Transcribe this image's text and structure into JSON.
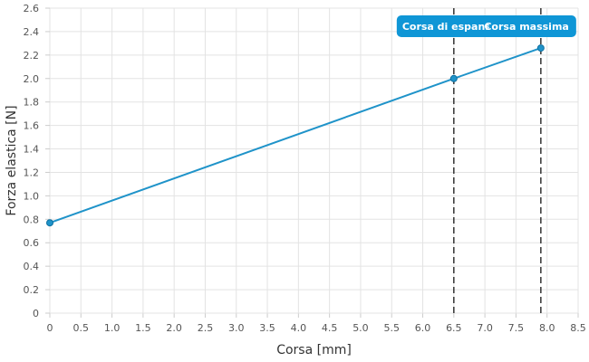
{
  "chart_data": {
    "type": "line",
    "xlabel": "Corsa [mm]",
    "ylabel": "Forza elastica [N]",
    "xlim": [
      0,
      8.5
    ],
    "ylim": [
      0,
      2.6
    ],
    "x_ticks": [
      "0",
      "0.5",
      "1.0",
      "1.5",
      "2.0",
      "2.5",
      "3.0",
      "3.5",
      "4.0",
      "4.5",
      "5.0",
      "5.5",
      "6.0",
      "6.5",
      "7.0",
      "7.5",
      "8.0",
      "8.5"
    ],
    "y_ticks": [
      "0",
      "0.2",
      "0.4",
      "0.6",
      "0.8",
      "1.0",
      "1.2",
      "1.4",
      "1.6",
      "1.8",
      "2.0",
      "2.2",
      "2.4",
      "2.6"
    ],
    "grid": true,
    "series": [
      {
        "color": "#1f93c9",
        "points": [
          {
            "x": 0,
            "y": 0.77
          },
          {
            "x": 6.5,
            "y": 2.0
          },
          {
            "x": 7.9,
            "y": 2.26
          }
        ]
      }
    ],
    "annotations": [
      {
        "x": 6.5,
        "label": "Corsa di espansi",
        "style": "dashed-vertical"
      },
      {
        "x": 7.9,
        "label": "Corsa massima",
        "style": "dashed-vertical"
      }
    ]
  },
  "colors": {
    "line": "#1f93c9",
    "grid": "#e3e3e3",
    "annotation_box": "#0f96d6",
    "annotation_line": "#333333"
  }
}
